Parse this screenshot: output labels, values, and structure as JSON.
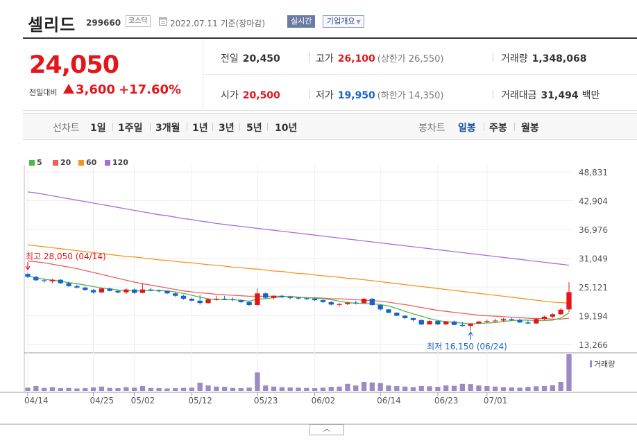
{
  "header": {
    "stock_name": "셀리드",
    "stock_code": "299660",
    "market": "코스닥",
    "base_date": "2022.07.11 기준(장마감)",
    "realtime_label": "실시간",
    "company_overview_label": "기업개요"
  },
  "summary": {
    "current_price": "24,050",
    "change_label": "전일대비",
    "change_amount": "3,600",
    "change_rate": "+17.60%",
    "prev_close_label": "전일",
    "prev_close": "20,450",
    "open_label": "시가",
    "open": "20,500",
    "high_label": "고가",
    "high": "26,100",
    "upper_limit": "(상한가 26,550)",
    "low_label": "저가",
    "low": "19,950",
    "lower_limit": "(하한가 14,350)",
    "volume_label": "거래량",
    "volume": "1,348,068",
    "amount_label": "거래대금",
    "amount": "31,494",
    "amount_unit": "백만"
  },
  "period_bar": {
    "line_chart_label": "선차트",
    "line_periods": [
      "1일",
      "1주일",
      "3개월",
      "1년",
      "3년",
      "5년",
      "10년"
    ],
    "candle_chart_label": "봉차트",
    "candle_periods": [
      "일봉",
      "주봉",
      "월봉"
    ],
    "active_candle": "일봉"
  },
  "colors": {
    "up": "#e4161c",
    "down": "#1a63c6",
    "ma5": "#4cb848",
    "ma20": "#f05d5d",
    "ma60": "#f7931e",
    "ma120": "#a670d6",
    "volume": "#9b8ac4"
  },
  "chart_data": {
    "type": "candlestick",
    "legend": [
      {
        "label": "5",
        "color": "#4cb848"
      },
      {
        "label": "20",
        "color": "#f05d5d"
      },
      {
        "label": "60",
        "color": "#f7931e"
      },
      {
        "label": "120",
        "color": "#a670d6"
      }
    ],
    "ylim": [
      13266,
      48831
    ],
    "y_ticks": [
      "48,831",
      "42,904",
      "36,976",
      "31,049",
      "25,121",
      "19,194",
      "13,266"
    ],
    "x_ticks": [
      "04/14",
      "04/25",
      "05/02",
      "05/12",
      "05/23",
      "06/02",
      "06/14",
      "06/23",
      "07/01"
    ],
    "high_annotation": "최고 28,050 (04/14)",
    "low_annotation": "최저 16,150 (06/24)",
    "volume_label": "거래량",
    "candles": [
      [
        27800,
        28050,
        27000,
        27200
      ],
      [
        27200,
        27400,
        26300,
        26500
      ],
      [
        26500,
        26900,
        26000,
        26400
      ],
      [
        26300,
        26800,
        25900,
        26600
      ],
      [
        26600,
        26800,
        25700,
        25900
      ],
      [
        25900,
        26200,
        25100,
        25300
      ],
      [
        25300,
        25600,
        24800,
        25000
      ],
      [
        25000,
        25200,
        24300,
        24500
      ],
      [
        24500,
        24700,
        23800,
        24000
      ],
      [
        24000,
        25000,
        23900,
        24800
      ],
      [
        24800,
        25000,
        24200,
        24300
      ],
      [
        24300,
        24500,
        23800,
        24000
      ],
      [
        24000,
        24900,
        23700,
        24600
      ],
      [
        24600,
        24800,
        23700,
        23900
      ],
      [
        23900,
        25900,
        23800,
        24600
      ],
      [
        24600,
        24900,
        24200,
        24400
      ],
      [
        24400,
        24600,
        24000,
        24300
      ],
      [
        24300,
        24400,
        23600,
        23800
      ],
      [
        23800,
        24000,
        23100,
        23300
      ],
      [
        23300,
        23500,
        22500,
        22700
      ],
      [
        22700,
        22900,
        22100,
        22300
      ],
      [
        22300,
        23500,
        21500,
        21800
      ],
      [
        21800,
        22700,
        21700,
        22600
      ],
      [
        22600,
        23300,
        22300,
        22700
      ],
      [
        22700,
        23300,
        22400,
        22600
      ],
      [
        22600,
        23000,
        22200,
        22400
      ],
      [
        22400,
        22600,
        21800,
        22000
      ],
      [
        22000,
        22200,
        21200,
        21400
      ],
      [
        21400,
        24800,
        21300,
        23800
      ],
      [
        23800,
        24000,
        22700,
        22900
      ],
      [
        22900,
        23400,
        22600,
        23300
      ],
      [
        23300,
        23500,
        22800,
        23000
      ],
      [
        23000,
        23200,
        22600,
        22900
      ],
      [
        22900,
        23100,
        22500,
        22800
      ],
      [
        22800,
        23000,
        22400,
        22700
      ],
      [
        22700,
        22900,
        22200,
        22400
      ],
      [
        22400,
        22600,
        21800,
        22000
      ],
      [
        22000,
        22200,
        21300,
        21500
      ],
      [
        21500,
        21800,
        21100,
        21600
      ],
      [
        21600,
        22100,
        21400,
        21900
      ],
      [
        21900,
        22300,
        21500,
        21800
      ],
      [
        21800,
        22900,
        21700,
        22700
      ],
      [
        22700,
        22800,
        21300,
        21400
      ],
      [
        21400,
        21500,
        20300,
        20500
      ],
      [
        20500,
        20600,
        19700,
        19800
      ],
      [
        19800,
        19900,
        19100,
        19200
      ],
      [
        19200,
        19300,
        18500,
        18700
      ],
      [
        18700,
        18800,
        18000,
        18300
      ],
      [
        18300,
        18400,
        17300,
        17400
      ],
      [
        17400,
        18300,
        17300,
        18100
      ],
      [
        18100,
        18200,
        17300,
        17400
      ],
      [
        17400,
        18100,
        17300,
        18000
      ],
      [
        18000,
        18200,
        17200,
        17300
      ],
      [
        17300,
        17900,
        16900,
        17100
      ],
      [
        17100,
        17700,
        16150,
        17600
      ],
      [
        17600,
        18100,
        17500,
        18000
      ],
      [
        18000,
        18400,
        17700,
        18100
      ],
      [
        18100,
        18600,
        17900,
        18200
      ],
      [
        18200,
        18700,
        17900,
        18500
      ],
      [
        18500,
        18800,
        18100,
        18300
      ],
      [
        18300,
        18600,
        17700,
        17800
      ],
      [
        17800,
        18300,
        17400,
        17600
      ],
      [
        17600,
        18800,
        17500,
        18500
      ],
      [
        18500,
        19200,
        18300,
        19000
      ],
      [
        19000,
        19700,
        18700,
        19500
      ],
      [
        19500,
        20800,
        19300,
        20450
      ],
      [
        20500,
        26100,
        19950,
        24050
      ]
    ],
    "volumes": [
      120000,
      180000,
      110000,
      140000,
      100000,
      110000,
      90000,
      100000,
      130000,
      160000,
      110000,
      100000,
      140000,
      120000,
      180000,
      110000,
      100000,
      90000,
      100000,
      110000,
      120000,
      300000,
      200000,
      160000,
      150000,
      110000,
      100000,
      120000,
      680000,
      200000,
      160000,
      140000,
      130000,
      120000,
      110000,
      100000,
      120000,
      150000,
      160000,
      260000,
      200000,
      330000,
      310000,
      290000,
      200000,
      180000,
      160000,
      140000,
      180000,
      170000,
      150000,
      200000,
      190000,
      260000,
      250000,
      200000,
      180000,
      160000,
      140000,
      130000,
      120000,
      150000,
      170000,
      180000,
      210000,
      330000,
      1348068
    ],
    "ma5": [
      27400,
      27000,
      26700,
      26500,
      26300,
      26000,
      25800,
      25500,
      25200,
      24900,
      24700,
      24500,
      24400,
      24300,
      24300,
      24400,
      24400,
      24300,
      24100,
      23800,
      23400,
      23000,
      22700,
      22500,
      22500,
      22500,
      22400,
      22200,
      22600,
      22700,
      22900,
      23100,
      23200,
      23000,
      22900,
      22800,
      22700,
      22500,
      22200,
      21900,
      21800,
      21700,
      21700,
      21500,
      21200,
      20700,
      20100,
      19600,
      19100,
      18600,
      18200,
      18000,
      17800,
      17700,
      17500,
      17600,
      17700,
      17800,
      18000,
      18200,
      18300,
      18300,
      18200,
      18200,
      18300,
      18700,
      19800
    ],
    "ma20": [
      30500,
      30300,
      30100,
      29800,
      29500,
      29200,
      28900,
      28500,
      28100,
      27700,
      27300,
      26900,
      26500,
      26100,
      25800,
      25500,
      25200,
      24900,
      24600,
      24300,
      24100,
      23900,
      23800,
      23600,
      23500,
      23400,
      23300,
      23200,
      23200,
      23200,
      23200,
      23200,
      23100,
      23000,
      22900,
      22900,
      22800,
      22700,
      22700,
      22600,
      22500,
      22400,
      22300,
      22200,
      22000,
      21700,
      21500,
      21200,
      20900,
      20600,
      20300,
      20100,
      19900,
      19700,
      19500,
      19300,
      19200,
      19100,
      19000,
      18900,
      18800,
      18700,
      18600,
      18600,
      18500,
      18500,
      18700
    ],
    "ma60": [
      33800,
      33600,
      33400,
      33200,
      33000,
      32800,
      32600,
      32400,
      32200,
      32000,
      31800,
      31600,
      31400,
      31300,
      31100,
      30900,
      30700,
      30600,
      30400,
      30200,
      30100,
      29900,
      29700,
      29600,
      29400,
      29200,
      29100,
      28900,
      28800,
      28600,
      28400,
      28300,
      28100,
      27900,
      27800,
      27600,
      27400,
      27300,
      27100,
      26900,
      26800,
      26600,
      26400,
      26200,
      26000,
      25800,
      25600,
      25400,
      25200,
      25000,
      24800,
      24600,
      24400,
      24200,
      24000,
      23800,
      23600,
      23400,
      23200,
      23000,
      22800,
      22600,
      22400,
      22200,
      22000,
      21900,
      21800
    ],
    "ma120": [
      44700,
      44500,
      44200,
      43900,
      43600,
      43300,
      43000,
      42700,
      42400,
      42100,
      41800,
      41500,
      41200,
      40900,
      40600,
      40300,
      40000,
      39800,
      39500,
      39200,
      39000,
      38700,
      38500,
      38200,
      38000,
      37800,
      37600,
      37400,
      37200,
      37000,
      36800,
      36600,
      36400,
      36200,
      36000,
      35800,
      35600,
      35400,
      35200,
      35000,
      34800,
      34600,
      34400,
      34200,
      34000,
      33800,
      33600,
      33400,
      33200,
      33000,
      32800,
      32600,
      32400,
      32200,
      32000,
      31800,
      31600,
      31400,
      31200,
      31000,
      30800,
      30600,
      30400,
      30200,
      30000,
      29800,
      29600
    ]
  }
}
